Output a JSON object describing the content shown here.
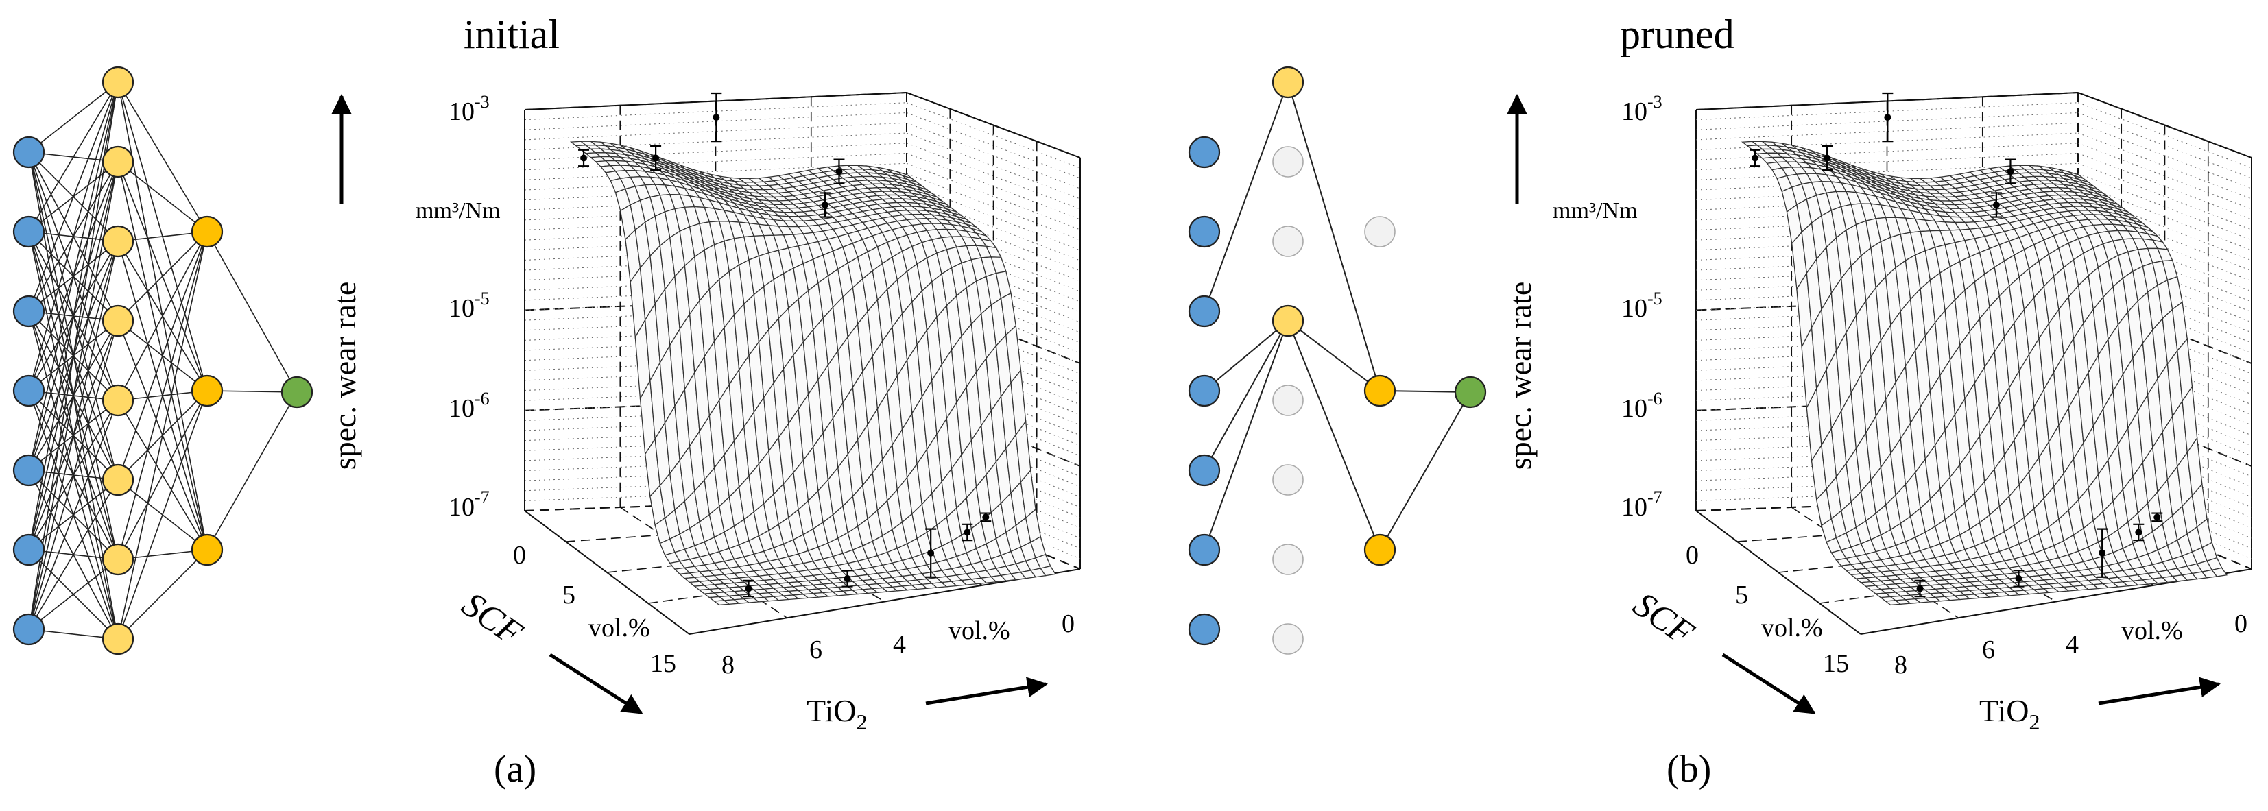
{
  "panels": [
    {
      "id": "a",
      "title": "initial",
      "label": "(a)",
      "network": {
        "layers": [
          {
            "role": "input",
            "count": 7,
            "color": "#5b9bd5"
          },
          {
            "role": "hidden-1",
            "count": 8,
            "color": "#ffd966"
          },
          {
            "role": "hidden-2",
            "count": 3,
            "color": "#ffc000"
          },
          {
            "role": "output",
            "count": 1,
            "color": "#70ad47"
          }
        ],
        "connectivity": "fully-connected"
      },
      "chart": {
        "type": "surface3d",
        "zlabel": "spec. wear rate",
        "zunit": "mm³/Nm",
        "z_ticks": [
          "10",
          "10",
          "10",
          "10"
        ],
        "z_tick_exponents": [
          "-3",
          "-5",
          "-6",
          "-7"
        ],
        "z_exponent_values": [
          -3,
          -5,
          -6,
          -7
        ],
        "scf_label": "SCF",
        "scf_ticks": [
          "0",
          "5",
          "15"
        ],
        "scf_unit": "vol.%",
        "tio2_label": "TiO",
        "tio2_subscript": "2",
        "tio2_ticks": [
          "8",
          "6",
          "4",
          "0"
        ],
        "tio2_unit": "vol.%"
      }
    },
    {
      "id": "b",
      "title": "pruned",
      "label": "(b)",
      "network": {
        "layers": [
          {
            "role": "input",
            "count": 7,
            "color": "#5b9bd5"
          },
          {
            "role": "hidden-1",
            "count": 8,
            "color": "#ffd966",
            "active": [
              0,
              3
            ]
          },
          {
            "role": "hidden-2",
            "count": 3,
            "color": "#ffc000",
            "active": [
              1,
              2
            ]
          },
          {
            "role": "output",
            "count": 1,
            "color": "#70ad47"
          }
        ],
        "inactive_color": "#f2f2f2",
        "connections": [
          [
            0,
            2,
            1,
            0
          ],
          [
            0,
            3,
            1,
            3
          ],
          [
            0,
            4,
            1,
            3
          ],
          [
            0,
            5,
            1,
            3
          ],
          [
            1,
            0,
            2,
            1
          ],
          [
            1,
            3,
            2,
            1
          ],
          [
            1,
            3,
            2,
            2
          ],
          [
            2,
            1,
            3,
            0
          ],
          [
            2,
            2,
            3,
            0
          ]
        ]
      },
      "chart": {
        "type": "surface3d",
        "zlabel": "spec. wear rate",
        "zunit": "mm³/Nm",
        "z_ticks": [
          "10",
          "10",
          "10",
          "10"
        ],
        "z_tick_exponents": [
          "-3",
          "-5",
          "-6",
          "-7"
        ],
        "z_exponent_values": [
          -3,
          -5,
          -6,
          -7
        ],
        "scf_label": "SCF",
        "scf_ticks": [
          "0",
          "5",
          "15"
        ],
        "scf_unit": "vol.%",
        "tio2_label": "TiO",
        "tio2_subscript": "2",
        "tio2_ticks": [
          "8",
          "6",
          "4",
          "0"
        ],
        "tio2_unit": "vol.%"
      }
    }
  ],
  "colors": {
    "input": "#5b9bd5",
    "hidden1": "#ffd966",
    "hidden2": "#ffc000",
    "output": "#70ad47",
    "inactive": "#f2f2f2",
    "mesh": "#333333"
  }
}
